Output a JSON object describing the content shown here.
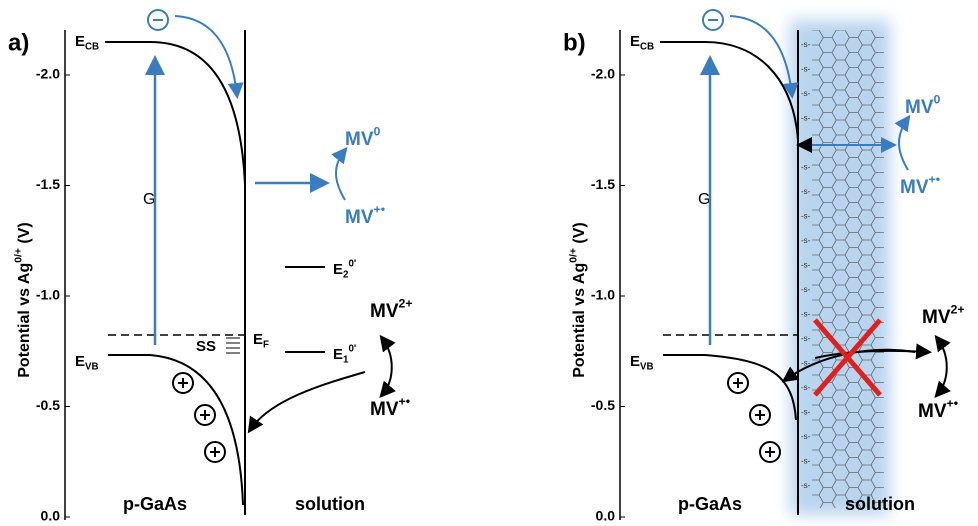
{
  "panels": [
    {
      "label": "a)",
      "axis_title": {
        "main": "Potential vs Ag",
        "sup": "0/+",
        "tail": " (V)"
      },
      "ticks": [
        "0.0",
        "-0.5",
        "-1.0",
        "-1.5",
        "-2.0"
      ],
      "ecb": {
        "main": "E",
        "sub": "CB"
      },
      "evb": {
        "main": "E",
        "sub": "VB"
      },
      "gap": "G",
      "ss": "SS",
      "ef": {
        "main": "E",
        "sub": "F"
      },
      "e1": {
        "main": "E",
        "sub": "1",
        "sup": "0'"
      },
      "e2": {
        "main": "E",
        "sub": "2",
        "sup": "0'"
      },
      "mv0": {
        "main": "MV",
        "sup": "0"
      },
      "mv_rad_blue": {
        "main": "MV",
        "sup": "+•"
      },
      "mv2": {
        "main": "MV",
        "sup": "2+"
      },
      "mv_rad": {
        "main": "MV",
        "sup": "+•"
      },
      "regions": [
        "p-GaAs",
        "solution"
      ]
    },
    {
      "label": "b)",
      "axis_title": {
        "main": "Potential vs Ag",
        "sup": "0/+",
        "tail": " (V)"
      },
      "ticks": [
        "0.0",
        "-0.5",
        "-1.0",
        "-1.5",
        "-2.0"
      ],
      "ecb": {
        "main": "E",
        "sub": "CB"
      },
      "evb": {
        "main": "E",
        "sub": "VB"
      },
      "gap": "G",
      "linker": "-s-",
      "mv0": {
        "main": "MV",
        "sup": "0"
      },
      "mv_rad_blue": {
        "main": "MV",
        "sup": "+•"
      },
      "mv2": {
        "main": "MV",
        "sup": "2+"
      },
      "mv_rad": {
        "main": "MV",
        "sup": "+•"
      },
      "regions": [
        "p-GaAs",
        "solution"
      ]
    }
  ]
}
